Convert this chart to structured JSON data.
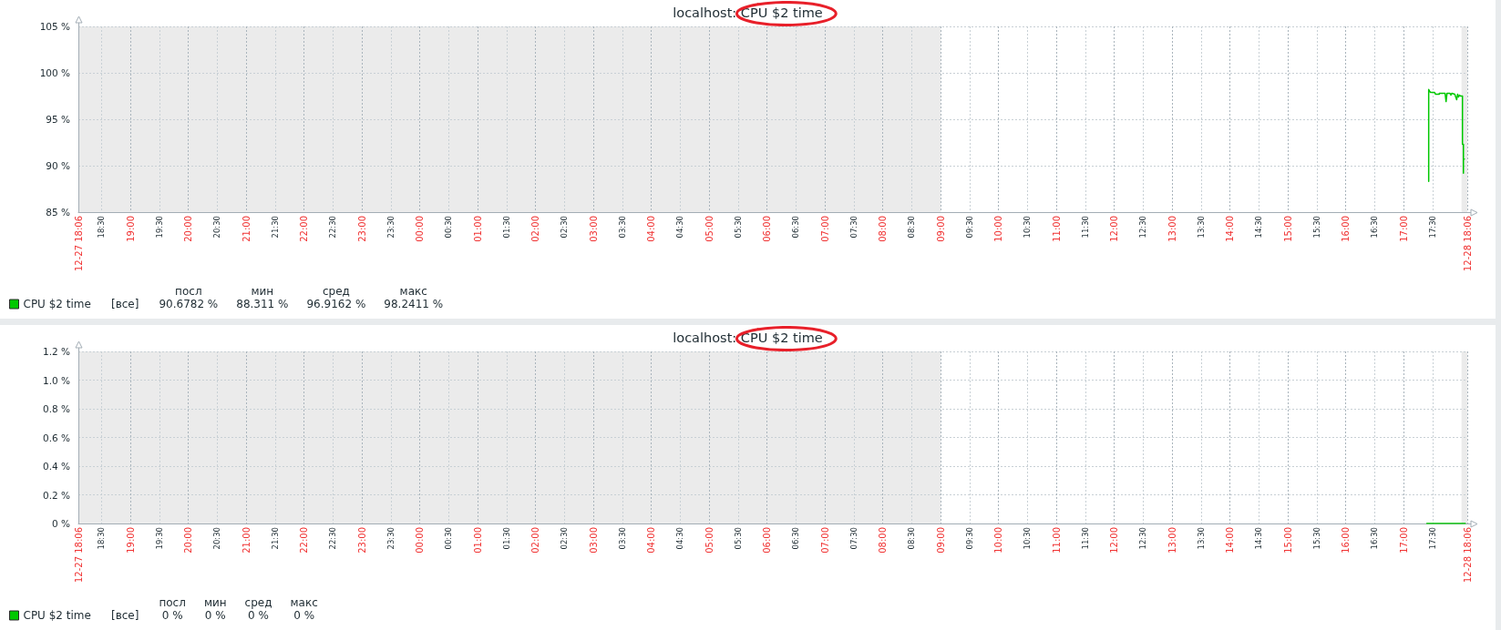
{
  "chart_data": [
    {
      "type": "line",
      "title": "localhost: CPU $2 time",
      "x": [
        "--12-28T17:26",
        "--12-28T17:26",
        "--12-28T17:27",
        "--12-28T17:28",
        "--12-28T17:32",
        "--12-28T17:33",
        "--12-28T17:37",
        "--12-28T17:37",
        "--12-28T17:43",
        "--12-28T17:44",
        "--12-28T17:45",
        "--12-28T17:48",
        "--12-28T17:49",
        "--12-28T17:50",
        "--12-28T17:53",
        "--12-28T17:55",
        "--12-28T17:56",
        "--12-28T17:57",
        "--12-28T17:58",
        "--12-28T17:59",
        "--12-28T18:01",
        "--12-28T18:01",
        "--12-28T18:02",
        "--12-28T18:02",
        "--12-28T18:02",
        "--12-28T18:03"
      ],
      "series": [
        {
          "name": "CPU $2 time",
          "color": "#00c800",
          "values": [
            88.3,
            98.2,
            98.0,
            97.9,
            97.9,
            97.7,
            97.7,
            97.8,
            97.8,
            96.9,
            97.8,
            97.8,
            97.6,
            97.8,
            97.7,
            97.1,
            97.7,
            97.4,
            97.6,
            97.5,
            97.5,
            92.3,
            92.3,
            89.2,
            90.7,
            90.7
          ]
        }
      ],
      "xlim": [
        "--12-27T18:06",
        "--12-28T18:06"
      ],
      "xticks": [
        {
          "value": "--12-27T18:06",
          "label": "12-27 18:06"
        },
        {
          "value": "--12-27T18:30",
          "label": "18:30"
        },
        {
          "value": "--12-27T19:00",
          "label": "19:00"
        },
        {
          "value": "--12-27T19:30",
          "label": "19:30"
        },
        {
          "value": "--12-27T20:00",
          "label": "20:00"
        },
        {
          "value": "--12-27T20:30",
          "label": "20:30"
        },
        {
          "value": "--12-27T21:00",
          "label": "21:00"
        },
        {
          "value": "--12-27T21:30",
          "label": "21:30"
        },
        {
          "value": "--12-27T22:00",
          "label": "22:00"
        },
        {
          "value": "--12-27T22:30",
          "label": "22:30"
        },
        {
          "value": "--12-27T23:00",
          "label": "23:00"
        },
        {
          "value": "--12-27T23:30",
          "label": "23:30"
        },
        {
          "value": "--12-28T00:00",
          "label": "00:00"
        },
        {
          "value": "--12-28T00:30",
          "label": "00:30"
        },
        {
          "value": "--12-28T01:00",
          "label": "01:00"
        },
        {
          "value": "--12-28T01:30",
          "label": "01:30"
        },
        {
          "value": "--12-28T02:00",
          "label": "02:00"
        },
        {
          "value": "--12-28T02:30",
          "label": "02:30"
        },
        {
          "value": "--12-28T03:00",
          "label": "03:00"
        },
        {
          "value": "--12-28T03:30",
          "label": "03:30"
        },
        {
          "value": "--12-28T04:00",
          "label": "04:00"
        },
        {
          "value": "--12-28T04:30",
          "label": "04:30"
        },
        {
          "value": "--12-28T05:00",
          "label": "05:00"
        },
        {
          "value": "--12-28T05:30",
          "label": "05:30"
        },
        {
          "value": "--12-28T06:00",
          "label": "06:00"
        },
        {
          "value": "--12-28T06:30",
          "label": "06:30"
        },
        {
          "value": "--12-28T07:00",
          "label": "07:00"
        },
        {
          "value": "--12-28T07:30",
          "label": "07:30"
        },
        {
          "value": "--12-28T08:00",
          "label": "08:00"
        },
        {
          "value": "--12-28T08:30",
          "label": "08:30"
        },
        {
          "value": "--12-28T09:00",
          "label": "09:00"
        },
        {
          "value": "--12-28T09:30",
          "label": "09:30"
        },
        {
          "value": "--12-28T10:00",
          "label": "10:00"
        },
        {
          "value": "--12-28T10:30",
          "label": "10:30"
        },
        {
          "value": "--12-28T11:00",
          "label": "11:00"
        },
        {
          "value": "--12-28T11:30",
          "label": "11:30"
        },
        {
          "value": "--12-28T12:00",
          "label": "12:00"
        },
        {
          "value": "--12-28T12:30",
          "label": "12:30"
        },
        {
          "value": "--12-28T13:00",
          "label": "13:00"
        },
        {
          "value": "--12-28T13:30",
          "label": "13:30"
        },
        {
          "value": "--12-28T14:00",
          "label": "14:00"
        },
        {
          "value": "--12-28T14:30",
          "label": "14:30"
        },
        {
          "value": "--12-28T15:00",
          "label": "15:00"
        },
        {
          "value": "--12-28T15:30",
          "label": "15:30"
        },
        {
          "value": "--12-28T16:00",
          "label": "16:00"
        },
        {
          "value": "--12-28T16:30",
          "label": "16:30"
        },
        {
          "value": "--12-28T17:00",
          "label": "17:00"
        },
        {
          "value": "--12-28T17:30",
          "label": "17:30"
        },
        {
          "value": "--12-28T18:06",
          "label": "12-28 18:06"
        }
      ],
      "ylim": [
        85,
        105
      ],
      "yticks": [
        {
          "value": 85,
          "label": "85 %"
        },
        {
          "value": 90,
          "label": "90 %"
        },
        {
          "value": 95,
          "label": "95 %"
        },
        {
          "value": 100,
          "label": "100 %"
        },
        {
          "value": 105,
          "label": "105 %"
        }
      ],
      "grid": true,
      "legend": "bottom left",
      "bands": [
        {
          "axis": "x",
          "from": "--12-27T18:06",
          "to": "--12-28T09:00",
          "color": "#ebebeb"
        },
        {
          "axis": "x",
          "from": "--12-28T18:00",
          "to": "--12-28T18:06",
          "color": "#ebebeb"
        }
      ],
      "annotations": [
        "[все]",
        "посл",
        "мин",
        "сред",
        "макс",
        "90.6782 %",
        "88.311 %",
        "96.9162 %",
        "98.2411 %"
      ]
    },
    {
      "type": "line",
      "title": "localhost: CPU $2 time",
      "x": [
        "--12-28T17:24",
        "--12-28T18:04"
      ],
      "series": [
        {
          "name": "CPU $2 time",
          "color": "#00c800",
          "values": [
            0,
            0
          ]
        }
      ],
      "xlim": [
        "--12-27T18:06",
        "--12-28T18:06"
      ],
      "xticks": [
        {
          "value": "--12-27T18:06",
          "label": "12-27 18:06"
        },
        {
          "value": "--12-27T18:30",
          "label": "18:30"
        },
        {
          "value": "--12-27T19:00",
          "label": "19:00"
        },
        {
          "value": "--12-27T19:30",
          "label": "19:30"
        },
        {
          "value": "--12-27T20:00",
          "label": "20:00"
        },
        {
          "value": "--12-27T20:30",
          "label": "20:30"
        },
        {
          "value": "--12-27T21:00",
          "label": "21:00"
        },
        {
          "value": "--12-27T21:30",
          "label": "21:30"
        },
        {
          "value": "--12-27T22:00",
          "label": "22:00"
        },
        {
          "value": "--12-27T22:30",
          "label": "22:30"
        },
        {
          "value": "--12-27T23:00",
          "label": "23:00"
        },
        {
          "value": "--12-27T23:30",
          "label": "23:30"
        },
        {
          "value": "--12-28T00:00",
          "label": "00:00"
        },
        {
          "value": "--12-28T00:30",
          "label": "00:30"
        },
        {
          "value": "--12-28T01:00",
          "label": "01:00"
        },
        {
          "value": "--12-28T01:30",
          "label": "01:30"
        },
        {
          "value": "--12-28T02:00",
          "label": "02:00"
        },
        {
          "value": "--12-28T02:30",
          "label": "02:30"
        },
        {
          "value": "--12-28T03:00",
          "label": "03:00"
        },
        {
          "value": "--12-28T03:30",
          "label": "03:30"
        },
        {
          "value": "--12-28T04:00",
          "label": "04:00"
        },
        {
          "value": "--12-28T04:30",
          "label": "04:30"
        },
        {
          "value": "--12-28T05:00",
          "label": "05:00"
        },
        {
          "value": "--12-28T05:30",
          "label": "05:30"
        },
        {
          "value": "--12-28T06:00",
          "label": "06:00"
        },
        {
          "value": "--12-28T06:30",
          "label": "06:30"
        },
        {
          "value": "--12-28T07:00",
          "label": "07:00"
        },
        {
          "value": "--12-28T07:30",
          "label": "07:30"
        },
        {
          "value": "--12-28T08:00",
          "label": "08:00"
        },
        {
          "value": "--12-28T08:30",
          "label": "08:30"
        },
        {
          "value": "--12-28T09:00",
          "label": "09:00"
        },
        {
          "value": "--12-28T09:30",
          "label": "09:30"
        },
        {
          "value": "--12-28T10:00",
          "label": "10:00"
        },
        {
          "value": "--12-28T10:30",
          "label": "10:30"
        },
        {
          "value": "--12-28T11:00",
          "label": "11:00"
        },
        {
          "value": "--12-28T11:30",
          "label": "11:30"
        },
        {
          "value": "--12-28T12:00",
          "label": "12:00"
        },
        {
          "value": "--12-28T12:30",
          "label": "12:30"
        },
        {
          "value": "--12-28T13:00",
          "label": "13:00"
        },
        {
          "value": "--12-28T13:30",
          "label": "13:30"
        },
        {
          "value": "--12-28T14:00",
          "label": "14:00"
        },
        {
          "value": "--12-28T14:30",
          "label": "14:30"
        },
        {
          "value": "--12-28T15:00",
          "label": "15:00"
        },
        {
          "value": "--12-28T15:30",
          "label": "15:30"
        },
        {
          "value": "--12-28T16:00",
          "label": "16:00"
        },
        {
          "value": "--12-28T16:30",
          "label": "16:30"
        },
        {
          "value": "--12-28T17:00",
          "label": "17:00"
        },
        {
          "value": "--12-28T17:30",
          "label": "17:30"
        },
        {
          "value": "--12-28T18:06",
          "label": "12-28 18:06"
        }
      ],
      "ylim": [
        0,
        1.2
      ],
      "yticks": [
        {
          "value": 0,
          "label": "0 %"
        },
        {
          "value": 0.2,
          "label": "0.2 %"
        },
        {
          "value": 0.4,
          "label": "0.4 %"
        },
        {
          "value": 0.6,
          "label": "0.6 %"
        },
        {
          "value": 0.8,
          "label": "0.8 %"
        },
        {
          "value": 1.0,
          "label": "1.0 %"
        },
        {
          "value": 1.2,
          "label": "1.2 %"
        }
      ],
      "grid": true,
      "legend": "bottom left",
      "bands": [
        {
          "axis": "x",
          "from": "--12-27T18:06",
          "to": "--12-28T09:00",
          "color": "#ebebeb"
        },
        {
          "axis": "x",
          "from": "--12-28T18:00",
          "to": "--12-28T18:06",
          "color": "#ebebeb"
        }
      ],
      "annotations": [
        "[все]",
        "посл",
        "мин",
        "сред",
        "макс",
        "0 %",
        "0 %",
        "0 %",
        "0 %"
      ]
    }
  ]
}
